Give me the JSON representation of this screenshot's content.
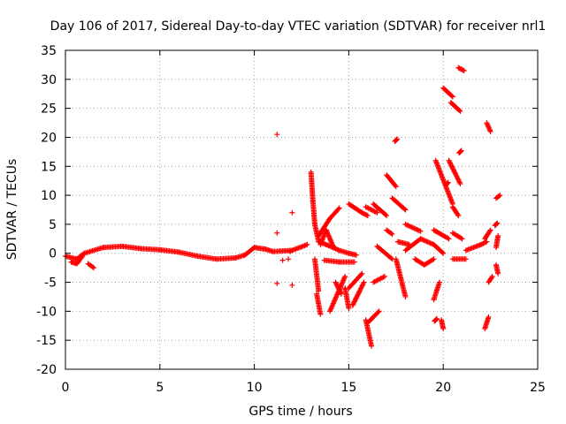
{
  "chart_data": {
    "type": "scatter",
    "title": "Day 106 of 2017, Sidereal Day-to-day VTEC variation (SDTVAR) for receiver nrl1",
    "xlabel": "GPS time / hours",
    "ylabel": "SDTVAR / TECUs",
    "xlim": [
      0,
      25
    ],
    "ylim": [
      -20,
      35
    ],
    "xticks": [
      0,
      5,
      10,
      15,
      20,
      25
    ],
    "yticks": [
      -20,
      -15,
      -10,
      -5,
      0,
      5,
      10,
      15,
      20,
      25,
      30,
      35
    ],
    "grid": true,
    "marker": "+",
    "marker_color": "#ff0000",
    "series": [
      {
        "name": "SDTVAR",
        "segments": [
          [
            [
              0.0,
              -0.5
            ],
            [
              0.6,
              -1.0
            ],
            [
              1.0,
              0.0
            ],
            [
              2.0,
              1.0
            ],
            [
              3.0,
              1.2
            ],
            [
              4.0,
              0.8
            ],
            [
              5.0,
              0.6
            ],
            [
              6.0,
              0.2
            ],
            [
              7.0,
              -0.5
            ],
            [
              8.0,
              -1.0
            ],
            [
              9.0,
              -0.8
            ],
            [
              9.5,
              -0.3
            ],
            [
              10.0,
              1.0
            ],
            [
              10.6,
              0.7
            ],
            [
              11.0,
              0.3
            ],
            [
              12.0,
              0.5
            ],
            [
              12.8,
              1.5
            ]
          ],
          [
            [
              0.3,
              -1.5
            ],
            [
              0.6,
              -1.8
            ],
            [
              0.9,
              -0.5
            ]
          ],
          [
            [
              1.2,
              -1.8
            ],
            [
              1.5,
              -2.5
            ]
          ],
          [
            [
              13.0,
              14.0
            ],
            [
              13.1,
              9.0
            ],
            [
              13.2,
              5.0
            ],
            [
              13.4,
              2.0
            ],
            [
              13.8,
              1.5
            ],
            [
              14.5,
              0.5
            ],
            [
              15.0,
              0.0
            ],
            [
              15.4,
              -0.3
            ]
          ],
          [
            [
              13.5,
              1.5
            ],
            [
              13.8,
              4.0
            ],
            [
              14.2,
              1.0
            ]
          ],
          [
            [
              13.2,
              -1.0
            ],
            [
              13.4,
              -6.5
            ]
          ],
          [
            [
              13.3,
              -7.0
            ],
            [
              13.5,
              -10.5
            ]
          ],
          [
            [
              13.4,
              3.0
            ],
            [
              14.0,
              6.0
            ],
            [
              14.5,
              7.8
            ]
          ],
          [
            [
              13.7,
              -1.2
            ],
            [
              14.5,
              -1.5
            ],
            [
              15.3,
              -1.5
            ]
          ],
          [
            [
              14.3,
              -5.0
            ],
            [
              14.6,
              -7.0
            ]
          ],
          [
            [
              14.0,
              -10.0
            ],
            [
              14.8,
              -4.0
            ]
          ],
          [
            [
              14.8,
              -6.0
            ],
            [
              15.0,
              -9.5
            ]
          ],
          [
            [
              15.0,
              8.5
            ],
            [
              15.7,
              7.0
            ],
            [
              16.0,
              6.5
            ]
          ],
          [
            [
              15.0,
              -6.0
            ],
            [
              15.7,
              -3.5
            ]
          ],
          [
            [
              15.2,
              -9.0
            ],
            [
              15.8,
              -5.0
            ]
          ],
          [
            [
              15.9,
              8.0
            ],
            [
              16.5,
              7.0
            ]
          ],
          [
            [
              15.9,
              -11.5
            ],
            [
              16.2,
              -16.0
            ]
          ],
          [
            [
              16.0,
              -12.0
            ],
            [
              16.6,
              -10.0
            ]
          ],
          [
            [
              16.3,
              -5.0
            ],
            [
              16.9,
              -4.0
            ]
          ],
          [
            [
              16.3,
              8.5
            ],
            [
              17.0,
              6.5
            ]
          ],
          [
            [
              16.5,
              1.2
            ],
            [
              17.3,
              -1.0
            ]
          ],
          [
            [
              17.0,
              4.0
            ],
            [
              17.3,
              3.3
            ]
          ],
          [
            [
              17.0,
              13.5
            ],
            [
              17.5,
              11.5
            ]
          ],
          [
            [
              17.5,
              19.5
            ]
          ],
          [
            [
              17.3,
              9.5
            ],
            [
              18.0,
              7.5
            ]
          ],
          [
            [
              17.6,
              2.0
            ],
            [
              18.2,
              1.5
            ]
          ],
          [
            [
              17.5,
              -1.0
            ],
            [
              18.0,
              -7.5
            ]
          ],
          [
            [
              18.0,
              5.0
            ],
            [
              18.8,
              3.8
            ]
          ],
          [
            [
              18.0,
              0.5
            ],
            [
              18.8,
              2.5
            ],
            [
              19.5,
              1.5
            ],
            [
              20.0,
              0.0
            ]
          ],
          [
            [
              18.5,
              -1.0
            ],
            [
              19.0,
              -2.0
            ],
            [
              19.5,
              -1.0
            ]
          ],
          [
            [
              19.6,
              16.0
            ],
            [
              20.5,
              8.5
            ]
          ],
          [
            [
              19.5,
              4.0
            ],
            [
              20.3,
              2.5
            ]
          ],
          [
            [
              19.8,
              -5.0
            ],
            [
              19.5,
              -8.0
            ]
          ],
          [
            [
              20.0,
              -13.0
            ],
            [
              19.9,
              -11.5
            ]
          ],
          [
            [
              19.6,
              -11.5
            ]
          ],
          [
            [
              20.0,
              28.5
            ],
            [
              20.5,
              27.0
            ]
          ],
          [
            [
              20.4,
              26.0
            ],
            [
              20.9,
              24.5
            ]
          ],
          [
            [
              20.3,
              16.0
            ],
            [
              20.9,
              12.0
            ]
          ],
          [
            [
              20.5,
              8.0
            ],
            [
              20.8,
              6.5
            ]
          ],
          [
            [
              20.2,
              12.0
            ]
          ],
          [
            [
              20.5,
              3.5
            ],
            [
              21.0,
              2.5
            ]
          ],
          [
            [
              20.5,
              -1.0
            ],
            [
              21.2,
              -1.0
            ]
          ],
          [
            [
              20.8,
              32.0
            ],
            [
              21.1,
              31.5
            ]
          ],
          [
            [
              20.9,
              17.5
            ]
          ],
          [
            [
              21.2,
              0.5
            ],
            [
              22.0,
              1.5
            ],
            [
              22.3,
              2.0
            ]
          ],
          [
            [
              22.3,
              22.5
            ],
            [
              22.5,
              21.0
            ]
          ],
          [
            [
              22.4,
              -11.0
            ],
            [
              22.2,
              -13.0
            ]
          ],
          [
            [
              22.4,
              -5.0
            ],
            [
              22.6,
              -4.0
            ]
          ],
          [
            [
              22.5,
              4.0
            ],
            [
              22.2,
              2.5
            ]
          ],
          [
            [
              22.8,
              9.5
            ],
            [
              23.0,
              10.0
            ]
          ],
          [
            [
              22.8,
              5.0
            ]
          ],
          [
            [
              22.8,
              1.0
            ],
            [
              22.9,
              3.0
            ]
          ],
          [
            [
              22.8,
              -2.0
            ],
            [
              22.9,
              -3.5
            ]
          ]
        ],
        "outliers": [
          [
            11.2,
            20.5
          ],
          [
            11.2,
            3.5
          ],
          [
            11.2,
            -5.2
          ],
          [
            12.0,
            7.0
          ],
          [
            12.0,
            -5.5
          ],
          [
            11.8,
            -1.0
          ],
          [
            11.9,
            0.3
          ],
          [
            11.5,
            -1.2
          ]
        ]
      }
    ]
  }
}
